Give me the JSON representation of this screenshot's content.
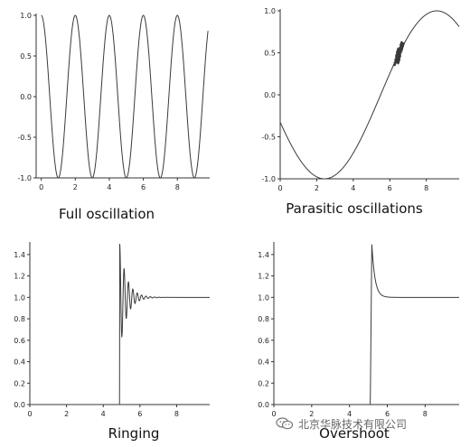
{
  "chart_data": [
    {
      "type": "line",
      "title": "Full oscillation",
      "series": [
        {
          "function": "cos(pi*x)",
          "x_range": [
            0,
            9.8
          ],
          "samples": 400
        }
      ],
      "xlim": [
        -0.3,
        9.9
      ],
      "ylim": [
        -1.0,
        1.0
      ],
      "x_ticks": [
        0,
        2,
        4,
        6,
        8
      ],
      "x_tick_labels": [
        "0",
        "2",
        "4",
        "6",
        "8"
      ],
      "y_ticks": [
        1.0,
        0.5,
        0.0,
        -0.5,
        -1.0
      ],
      "y_tick_labels": [
        "1.0",
        "0.5",
        "0.0",
        "-0.5",
        "-1.0"
      ],
      "grid": false
    },
    {
      "type": "line",
      "title": "Parasitic oscillations",
      "series": [
        {
          "function": "-sin(pi*(x+0.65)/6.15) with high-frequency glitch near x=6.2-6.8",
          "x_range": [
            0,
            9.8
          ],
          "samples": 700,
          "glitch": {
            "start": 6.2,
            "end": 6.8,
            "freq": 25,
            "amp": 0.12
          }
        }
      ],
      "xlim": [
        0,
        9.8
      ],
      "ylim": [
        -1.0,
        1.0
      ],
      "x_ticks": [
        0,
        2,
        4,
        6,
        8
      ],
      "x_tick_labels": [
        "0",
        "2",
        "4",
        "6",
        "8"
      ],
      "y_ticks": [
        1.0,
        0.5,
        0.0,
        -0.5,
        -1.0
      ],
      "y_tick_labels": [
        "1.0",
        "0.5",
        "0.0",
        "-0.5",
        "-1.0"
      ],
      "grid": false
    },
    {
      "type": "line",
      "title": "Ringing",
      "series": [
        {
          "function": "step at x=4.9 to 1.0 with damped oscillation",
          "x_range": [
            0,
            9.8
          ],
          "step_x": 4.9,
          "final": 1.0,
          "peak": 1.5,
          "ring_freq": 4.2,
          "ring_decay": 2.6
        }
      ],
      "xlim": [
        0,
        9.8
      ],
      "ylim": [
        0.0,
        1.5
      ],
      "x_ticks": [
        0,
        2,
        4,
        6,
        8
      ],
      "x_tick_labels": [
        "0",
        "2",
        "4",
        "6",
        "8"
      ],
      "y_ticks": [
        1.4,
        1.2,
        1.0,
        0.8,
        0.6,
        0.4,
        0.2,
        0.0
      ],
      "y_tick_labels": [
        "1.4",
        "1.2",
        "1.0",
        "0.8",
        "0.6",
        "0.4",
        "0.2",
        "0.0"
      ],
      "grid": false
    },
    {
      "type": "line",
      "title": "Overshoot",
      "series": [
        {
          "function": "step at x=5.1 to 1.0 with decaying overshoot",
          "x_range": [
            0,
            9.8
          ],
          "step_x": 5.1,
          "final": 1.0,
          "peak": 1.5,
          "decay": 6
        }
      ],
      "xlim": [
        0,
        9.8
      ],
      "ylim": [
        0.0,
        1.5
      ],
      "x_ticks": [
        0,
        2,
        4,
        6,
        8
      ],
      "x_tick_labels": [
        "0",
        "2",
        "4",
        "6",
        "8"
      ],
      "y_ticks": [
        1.4,
        1.2,
        1.0,
        0.8,
        0.6,
        0.4,
        0.2,
        0.0
      ],
      "y_tick_labels": [
        "1.4",
        "1.2",
        "1.0",
        "0.8",
        "0.6",
        "0.4",
        "0.2",
        "0.0"
      ],
      "grid": false
    }
  ],
  "watermark": {
    "text": "北京华脉技术有限公司",
    "icon": "wechat-icon"
  }
}
